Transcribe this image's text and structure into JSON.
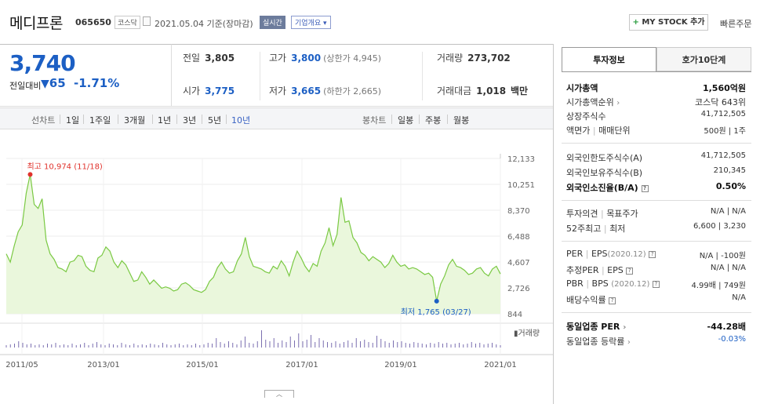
{
  "header": {
    "company": "메디프론",
    "code": "065650",
    "market": "코스닥",
    "date": "2021.05.04",
    "basis": "기준(장마감)",
    "realtime": "실시간",
    "overview": "기업개요 ▾",
    "mystock_plus": "+",
    "mystock": "MY STOCK 추가",
    "quick_order": "빠른주문"
  },
  "price": {
    "current": "3,740",
    "change_label": "전일대비",
    "change_arrow": "▼",
    "change": "65",
    "rate": "-1.71%"
  },
  "stats": {
    "prev_label": "전일",
    "prev": "3,805",
    "high_label": "고가",
    "high": "3,800",
    "upper_label": "(상한가 4,945)",
    "volume_label": "거래량",
    "volume": "273,702",
    "open_label": "시가",
    "open": "3,775",
    "low_label": "저가",
    "low": "3,665",
    "lower_label": "(하한가 2,665)",
    "amount_label": "거래대금",
    "amount": "1,018",
    "amount_unit": "백만"
  },
  "toolbar": {
    "line_chart": "선차트",
    "periods": [
      "1일",
      "1주일",
      "3개월",
      "1년",
      "3년",
      "5년",
      "10년"
    ],
    "active_period": "10년",
    "candle_chart": "봉차트",
    "candles": [
      "일봉",
      "주봉",
      "월봉"
    ]
  },
  "chart_data": {
    "type": "area",
    "ylim": [
      844,
      12133
    ],
    "y_ticks": [
      "12,133",
      "10,251",
      "8,370",
      "6,488",
      "4,607",
      "2,726",
      "844"
    ],
    "x_ticks": [
      "2011/05",
      "2013/01",
      "2015/01",
      "2017/01",
      "2019/01",
      "2021/01"
    ],
    "max_label": "최고 10,974 (11/18)",
    "min_label": "최저 1,765 (03/27)",
    "volume_label": "거래량",
    "colors": {
      "line": "#7ac943",
      "fill": "#eaf7dc",
      "max": "#e0322c",
      "min": "#1c5fc4"
    },
    "series": [
      {
        "values": [
          5200,
          4600,
          5800,
          6800,
          7300,
          9600,
          10974,
          8800,
          8500,
          9200,
          6200,
          5200,
          4800,
          4200,
          4100,
          3900,
          4600,
          4700,
          5100,
          5000,
          4300,
          4000,
          3900,
          4900,
          5100,
          5700,
          5400,
          4600,
          4200,
          4700,
          4400,
          3800,
          3200,
          3300,
          3900,
          3500,
          3000,
          3300,
          3000,
          2700,
          2800,
          2700,
          2500,
          2600,
          3000,
          3100,
          2900,
          2600,
          2500,
          2400,
          2600,
          3200,
          3500,
          4200,
          4600,
          4100,
          3800,
          3900,
          4700,
          5200,
          6400,
          5000,
          4300,
          4200,
          4100,
          3900,
          3800,
          4300,
          4100,
          4700,
          4300,
          3600,
          4600,
          5400,
          4900,
          4300,
          3900,
          4500,
          4300,
          5400,
          6000,
          7100,
          5800,
          6600,
          9300,
          7500,
          7600,
          6400,
          6000,
          5300,
          5100,
          4700,
          5000,
          4800,
          4600,
          4200,
          4500,
          5100,
          4600,
          4300,
          4400,
          4100,
          4200,
          4100,
          3900,
          3700,
          3800,
          3500,
          1765,
          3000,
          3600,
          4400,
          4800,
          4300,
          4200,
          4000,
          3700,
          3800,
          4100,
          4200,
          3800,
          3600,
          4100,
          4300,
          3740
        ]
      }
    ]
  },
  "panel": {
    "tab1": "투자정보",
    "tab2": "호가10단계",
    "mcap_label": "시가총액",
    "mcap": "1,560억원",
    "mcap_rank_label": "시가총액순위",
    "mcap_rank": "코스닥 643위",
    "shares_label": "상장주식수",
    "shares": "41,712,505",
    "par_label": "액면가",
    "unit_label": "매매단위",
    "par_unit": "500원 | 1주",
    "foreign_limit_label": "외국인한도주식수(A)",
    "foreign_limit": "41,712,505",
    "foreign_hold_label": "외국인보유주식수(B)",
    "foreign_hold": "210,345",
    "foreign_ratio_label": "외국인소진율(B/A)",
    "foreign_ratio": "0.50%",
    "opinion_label": "투자의견",
    "target_label": "목표주가",
    "opinion_target": "N/A | N/A",
    "w52_high_label": "52주최고",
    "w52_low_label": "최저",
    "w52": "6,600 | 3,230",
    "per_label": "PER",
    "eps_label": "EPS",
    "eps_date": "(2020.12)",
    "per_eps": "N/A | -100원",
    "est_per_label": "추정PER",
    "est_eps_label": "EPS",
    "est_per_eps": "N/A | N/A",
    "pbr_label": "PBR",
    "bps_label": "BPS",
    "bps_date": "(2020.12)",
    "pbr_bps": "4.99배 | 749원",
    "dividend_label": "배당수익률",
    "dividend": "N/A",
    "sector_per_label": "동일업종 PER",
    "sector_per": "-44.28배",
    "sector_rate_label": "동일업종 등락률",
    "sector_rate": "-0.03%"
  }
}
